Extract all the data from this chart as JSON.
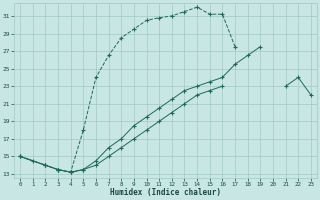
{
  "xlabel": "Humidex (Indice chaleur)",
  "bg_color": "#c8e6e3",
  "grid_color": "#a0c8c5",
  "line_color": "#1a6b5a",
  "xlim": [
    -0.5,
    23.5
  ],
  "ylim": [
    12.5,
    32.5
  ],
  "xtick_vals": [
    0,
    1,
    2,
    3,
    4,
    5,
    6,
    7,
    8,
    9,
    10,
    11,
    12,
    13,
    14,
    15,
    16,
    17,
    18,
    19,
    20,
    21,
    22,
    23
  ],
  "ytick_vals": [
    13,
    15,
    17,
    19,
    21,
    23,
    25,
    27,
    29,
    31
  ],
  "curve1_x": [
    0,
    1,
    2,
    3,
    4,
    5,
    6,
    7,
    8,
    9,
    10,
    11,
    12,
    13,
    14,
    15,
    16,
    17
  ],
  "curve1_y": [
    15.0,
    14.5,
    14.0,
    13.5,
    13.2,
    18.0,
    24.0,
    26.5,
    28.5,
    29.5,
    30.5,
    30.8,
    31.0,
    31.5,
    32.0,
    31.2,
    31.2,
    27.5
  ],
  "curve1_ls": "--",
  "curve2_x": [
    0,
    2,
    3,
    4,
    5,
    6,
    7,
    8,
    9,
    10,
    11,
    12,
    13,
    14,
    15,
    16,
    17,
    18,
    19
  ],
  "curve2_y": [
    15.0,
    14.0,
    13.5,
    13.2,
    13.5,
    14.5,
    16.0,
    17.0,
    18.5,
    19.5,
    20.5,
    21.5,
    22.5,
    23.0,
    23.5,
    24.0,
    25.5,
    26.5,
    27.5
  ],
  "curve2_ls": "-",
  "curve3_x": [
    0,
    2,
    3,
    4,
    5,
    6,
    7,
    8,
    9,
    10,
    11,
    12,
    13,
    14,
    15,
    16,
    21,
    22,
    23
  ],
  "curve3_y": [
    15.0,
    14.0,
    13.5,
    13.2,
    13.5,
    14.0,
    15.0,
    16.0,
    17.0,
    18.0,
    19.0,
    20.0,
    21.0,
    22.0,
    22.5,
    23.0,
    23.0,
    24.0,
    22.0
  ],
  "curve3_ls": "-"
}
